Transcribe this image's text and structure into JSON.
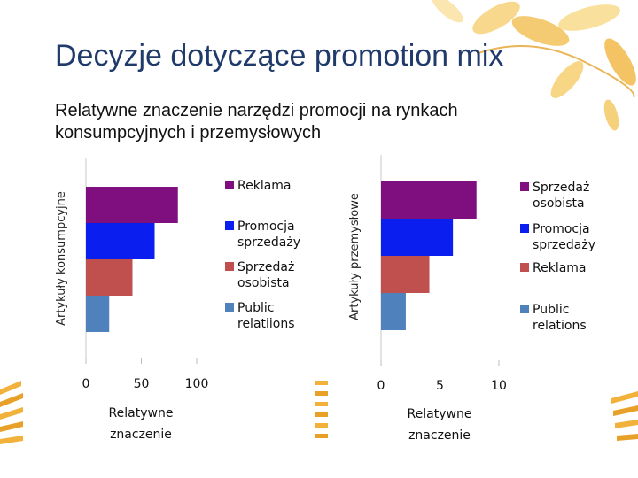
{
  "slide": {
    "title": "Decyzje dotyczące promotion mix",
    "subtitle": "Relatywne znaczenie narzędzi promocji na rynkach konsumpcyjnych i przemysłowych"
  },
  "chart_data": [
    {
      "type": "bar",
      "orientation": "horizontal",
      "ylabel": "Artykuły konsumpcyjne",
      "xlabel": "Relatywne znaczenie",
      "xlim": [
        0,
        100
      ],
      "xticks": [
        "0",
        "50",
        "100"
      ],
      "legend_position": "right",
      "series": [
        {
          "name": "Reklama",
          "value": 83,
          "color": "#7f0f7e"
        },
        {
          "name": "Promocja sprzedaży",
          "value": 62,
          "color": "#0a1ef0"
        },
        {
          "name": "Sprzedaż osobista",
          "value": 42,
          "color": "#c0504d"
        },
        {
          "name": "Public relatiions",
          "value": 21,
          "color": "#4f81bd"
        }
      ]
    },
    {
      "type": "bar",
      "orientation": "horizontal",
      "ylabel": "Artykuły przemysłowe",
      "xlabel": "Relatywne znaczenie",
      "xlim": [
        0,
        10
      ],
      "xticks": [
        "0",
        "5",
        "10"
      ],
      "legend_position": "right",
      "series": [
        {
          "name": "Sprzedaż osobista",
          "value": 8.1,
          "color": "#7f0f7e"
        },
        {
          "name": "Promocja sprzedaży",
          "value": 6.1,
          "color": "#0a1ef0"
        },
        {
          "name": "Reklama",
          "value": 4.1,
          "color": "#c0504d"
        },
        {
          "name": "Public relations",
          "value": 2.1,
          "color": "#4f81bd"
        }
      ]
    }
  ]
}
